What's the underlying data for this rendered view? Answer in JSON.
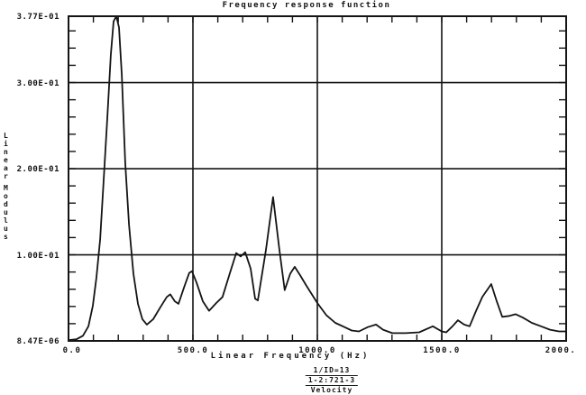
{
  "colors": {
    "ink": "#141414",
    "background": "#ffffff"
  },
  "annotation": {
    "line1": "1/ID=13",
    "line2": "1-2:721-3",
    "line3": "Velocity"
  },
  "chart_data": {
    "type": "line",
    "title": "Frequency response function",
    "xlabel": "Linear Frequency (Hz)",
    "ylabel": "Linear Modulus",
    "xlim": [
      0,
      2000
    ],
    "ylim": [
      8.47e-06,
      0.377
    ],
    "grid": true,
    "gridlines_x": [
      500,
      1000,
      1500
    ],
    "gridlines_y": [
      0.1,
      0.2,
      0.3
    ],
    "minor_tick_step_x": 100,
    "minor_tick_step_y": 0.02,
    "x_tick_labels": [
      {
        "value": 0,
        "label": "0.0"
      },
      {
        "value": 500,
        "label": "500.0"
      },
      {
        "value": 1000,
        "label": "1000.0"
      },
      {
        "value": 1500,
        "label": "1500.0"
      },
      {
        "value": 2000,
        "label": "2000."
      }
    ],
    "y_tick_labels": [
      {
        "value": 0.377,
        "label": "3.77E-01"
      },
      {
        "value": 0.3,
        "label": "3.00E-01"
      },
      {
        "value": 0.2,
        "label": "2.00E-01"
      },
      {
        "value": 0.1,
        "label": "1.00E-01"
      },
      {
        "value": 8.47e-06,
        "label": "8.47E-06"
      }
    ],
    "series": [
      {
        "name": "Velocity",
        "x": [
          0,
          33,
          58,
          80,
          98,
          112,
          127,
          141,
          156,
          170,
          181,
          192,
          203,
          214,
          228,
          243,
          261,
          279,
          297,
          315,
          340,
          369,
          395,
          409,
          427,
          442,
          464,
          485,
          496,
          514,
          540,
          565,
          594,
          619,
          648,
          674,
          692,
          710,
          732,
          750,
          761,
          793,
          822,
          848,
          869,
          891,
          909,
          931,
          956,
          1000,
          1036,
          1072,
          1109,
          1138,
          1167,
          1203,
          1236,
          1264,
          1301,
          1355,
          1409,
          1464,
          1500,
          1518,
          1543,
          1565,
          1590,
          1612,
          1638,
          1663,
          1699,
          1721,
          1743,
          1772,
          1797,
          1826,
          1862,
          1899,
          1935,
          1971,
          2000
        ],
        "y": [
          0.001,
          0.002,
          0.006,
          0.017,
          0.041,
          0.073,
          0.118,
          0.185,
          0.26,
          0.332,
          0.371,
          0.377,
          0.364,
          0.309,
          0.207,
          0.135,
          0.078,
          0.043,
          0.025,
          0.019,
          0.025,
          0.039,
          0.051,
          0.054,
          0.046,
          0.043,
          0.062,
          0.079,
          0.081,
          0.068,
          0.046,
          0.035,
          0.044,
          0.051,
          0.078,
          0.102,
          0.098,
          0.103,
          0.084,
          0.049,
          0.047,
          0.105,
          0.167,
          0.105,
          0.059,
          0.078,
          0.086,
          0.076,
          0.064,
          0.044,
          0.03,
          0.021,
          0.016,
          0.012,
          0.011,
          0.016,
          0.019,
          0.013,
          0.009,
          0.009,
          0.01,
          0.017,
          0.011,
          0.01,
          0.017,
          0.024,
          0.019,
          0.017,
          0.035,
          0.051,
          0.066,
          0.046,
          0.028,
          0.029,
          0.031,
          0.027,
          0.021,
          0.017,
          0.013,
          0.011,
          0.011
        ]
      }
    ]
  }
}
